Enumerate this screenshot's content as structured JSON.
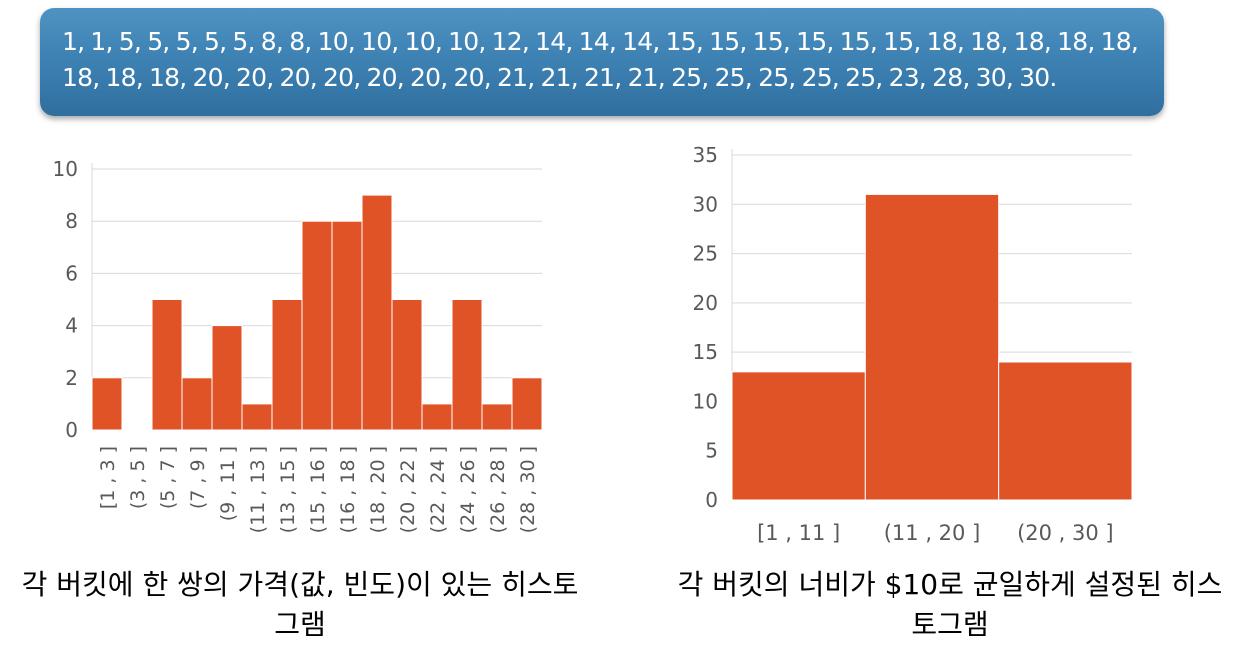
{
  "banner": {
    "data_line": "1, 1, 5, 5, 5, 5, 5, 8, 8, 10, 10, 10, 10, 12, 14, 14, 14, 15, 15, 15, 15, 15, 15, 18, 18, 18, 18, 18, 18, 18, 18, 20, 20, 20, 20, 20, 20, 20, 21, 21, 21, 21, 25, 25, 25, 25, 25, 23, 28, 30, 30."
  },
  "captions": {
    "left": "각 버킷에 한 쌍의 가격(값, 빈도)이 있는 히스토그램",
    "right": "각 버킷의 너비가 $10로 균일하게 설정된 히스토그램"
  },
  "colors": {
    "bar": "#e05327",
    "grid": "#d9d9d9",
    "axis_text": "#595959",
    "banner": "#3e82b4"
  },
  "chart_data": [
    {
      "type": "bar",
      "title": "",
      "xlabel": "",
      "ylabel": "",
      "ylim": [
        0,
        10
      ],
      "yticks": [
        0,
        2,
        4,
        6,
        8,
        10
      ],
      "grid": true,
      "categories": [
        "[1 , 3 ]",
        "(3 , 5 ]",
        "(5 , 7 ]",
        "(7 , 9 ]",
        "(9 , 11 ]",
        "(11 , 13 ]",
        "(13 , 15 ]",
        "(15 , 16 ]",
        "(16 , 18 ]",
        "(18 , 20 ]",
        "(20 , 22 ]",
        "(22 , 24 ]",
        "(24 , 26 ]",
        "(26 , 28 ]",
        "(28 , 30 ]"
      ],
      "values": [
        2,
        0,
        5,
        2,
        4,
        1,
        5,
        8,
        8,
        9,
        5,
        1,
        5,
        1,
        2
      ]
    },
    {
      "type": "bar",
      "title": "",
      "xlabel": "",
      "ylabel": "",
      "ylim": [
        0,
        35
      ],
      "yticks": [
        0,
        5,
        10,
        15,
        20,
        25,
        30,
        35
      ],
      "grid": true,
      "categories": [
        "[1 , 11 ]",
        "(11 , 20 ]",
        "(20 , 30 ]"
      ],
      "values": [
        13,
        31,
        14
      ]
    }
  ]
}
